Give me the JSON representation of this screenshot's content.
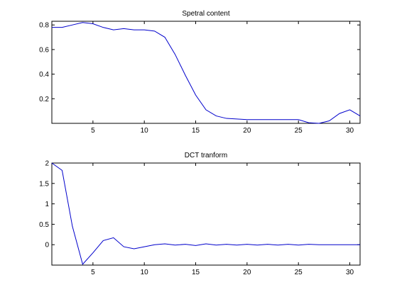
{
  "chart_data": [
    {
      "type": "line",
      "title": "Spetral content",
      "xlim": [
        1,
        31
      ],
      "ylim": [
        0,
        0.83
      ],
      "xticks": [
        5,
        10,
        15,
        20,
        25,
        30
      ],
      "yticks": [
        0.2,
        0.4,
        0.6,
        0.8
      ],
      "ytick_labels": [
        "0.2",
        "0.4",
        "0.6",
        "0.8"
      ],
      "grid": false,
      "color": "#0000cc",
      "x": [
        1,
        2,
        3,
        4,
        5,
        6,
        7,
        8,
        9,
        10,
        11,
        12,
        13,
        14,
        15,
        16,
        17,
        18,
        19,
        20,
        21,
        22,
        23,
        24,
        25,
        26,
        27,
        28,
        29,
        30,
        31
      ],
      "y": [
        0.78,
        0.78,
        0.8,
        0.82,
        0.81,
        0.78,
        0.76,
        0.77,
        0.76,
        0.76,
        0.75,
        0.7,
        0.56,
        0.39,
        0.23,
        0.11,
        0.06,
        0.04,
        0.035,
        0.03,
        0.03,
        0.03,
        0.03,
        0.03,
        0.03,
        0.005,
        0.0,
        0.02,
        0.08,
        0.11,
        0.06
      ]
    },
    {
      "type": "line",
      "title": "DCT tranform",
      "xlim": [
        1,
        31
      ],
      "ylim": [
        -0.5,
        2
      ],
      "xticks": [
        5,
        10,
        15,
        20,
        25,
        30
      ],
      "yticks": [
        -0.5,
        0,
        0.5,
        1,
        1.5,
        2
      ],
      "ytick_labels": [
        "",
        "0",
        "0.5",
        "1",
        "1.5",
        "2"
      ],
      "grid": false,
      "color": "#0000cc",
      "x": [
        1,
        2,
        3,
        4,
        5,
        6,
        7,
        8,
        9,
        10,
        11,
        12,
        13,
        14,
        15,
        16,
        17,
        18,
        19,
        20,
        21,
        22,
        23,
        24,
        25,
        26,
        27,
        28,
        29,
        30,
        31
      ],
      "y": [
        2.0,
        1.82,
        0.45,
        -0.48,
        -0.2,
        0.1,
        0.17,
        -0.05,
        -0.1,
        -0.05,
        0.0,
        0.02,
        -0.01,
        0.01,
        -0.02,
        0.02,
        -0.01,
        0.01,
        -0.01,
        0.01,
        -0.01,
        0.01,
        -0.01,
        0.01,
        -0.01,
        0.01,
        0.0,
        0.0,
        0.0,
        0.0,
        0.0
      ]
    }
  ]
}
